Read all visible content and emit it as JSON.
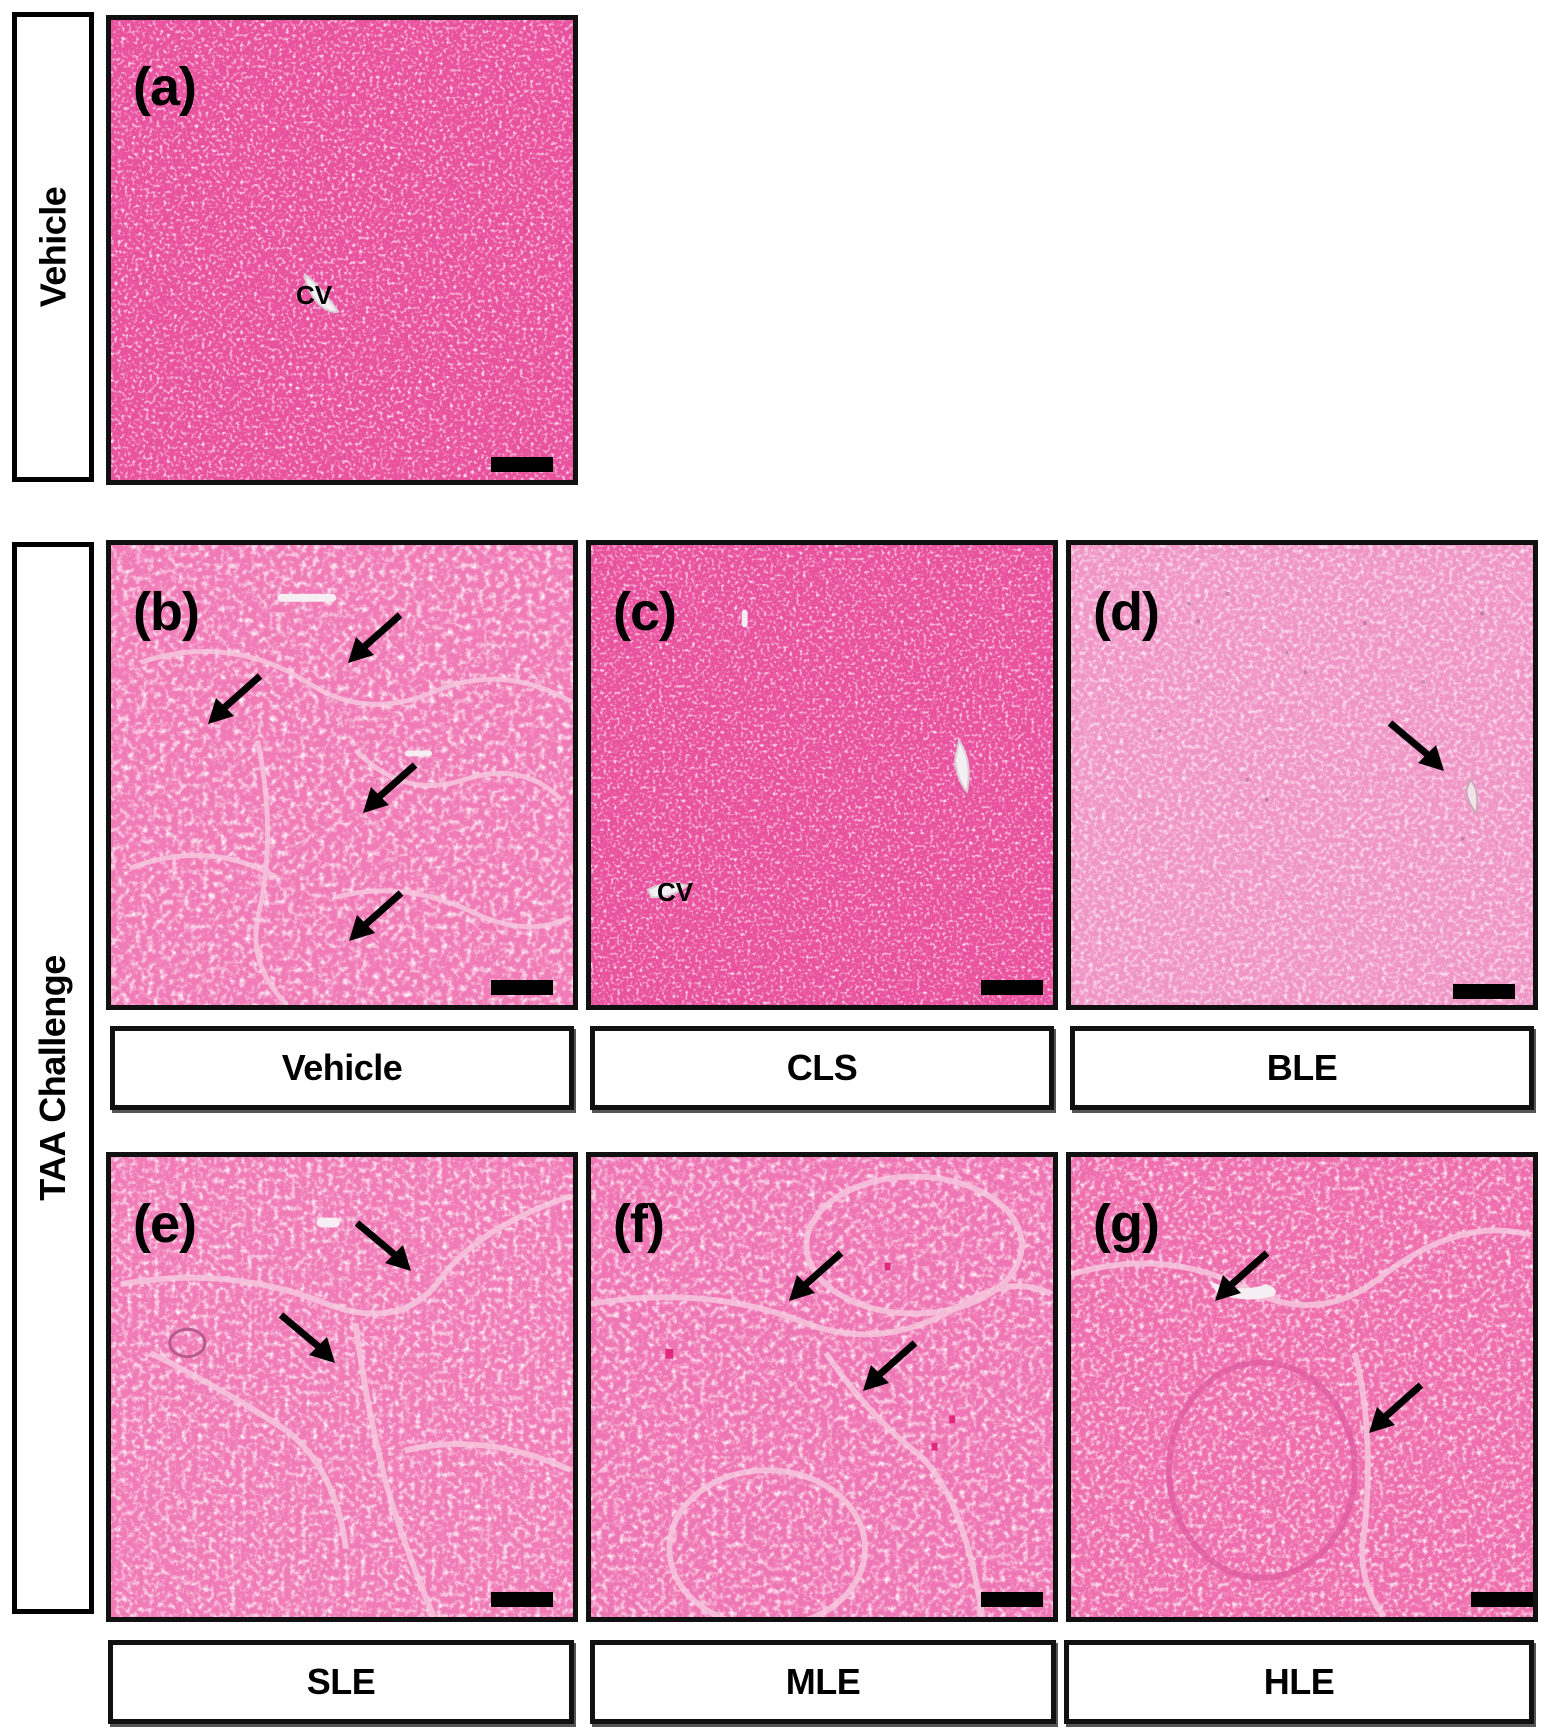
{
  "row_labels": {
    "top": "Vehicle",
    "bottom": "TAA Challenge"
  },
  "panels": {
    "a": {
      "letter": "(a)",
      "vessel_label": "CV",
      "arrows": 0
    },
    "b": {
      "letter": "(b)",
      "arrows": 4,
      "group": "Vehicle"
    },
    "c": {
      "letter": "(c)",
      "vessel_label": "CV",
      "arrows": 0,
      "group": "CLS"
    },
    "d": {
      "letter": "(d)",
      "arrows": 1,
      "group": "BLE"
    },
    "e": {
      "letter": "(e)",
      "arrows": 2,
      "group": "SLE"
    },
    "f": {
      "letter": "(f)",
      "arrows": 2,
      "group": "MLE"
    },
    "g": {
      "letter": "(g)",
      "arrows": 2,
      "group": "HLE"
    }
  },
  "colors": {
    "stain_normal": "#ea5aa8",
    "stain_fibrotic": "#f17cb8",
    "stain_pale": "#f09ac6",
    "arrow": "#000000",
    "border": "#111111"
  },
  "arrow_icon": "arrow-icon",
  "scale_bar_icon": "scale-bar-icon"
}
